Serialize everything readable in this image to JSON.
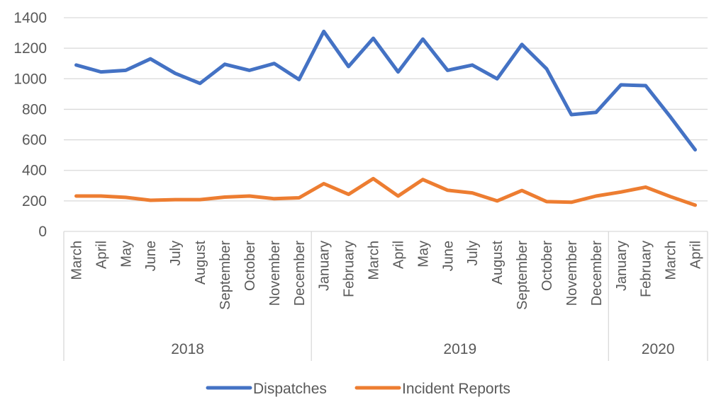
{
  "chart_data": {
    "type": "line",
    "title": "",
    "xlabel": "",
    "ylabel": "",
    "ylim": [
      0,
      1400
    ],
    "yticks": [
      0,
      200,
      400,
      600,
      800,
      1000,
      1200,
      1400
    ],
    "grid": true,
    "legend_position": "bottom",
    "categories": [
      "March",
      "April",
      "May",
      "June",
      "July",
      "August",
      "September",
      "October",
      "November",
      "December",
      "January",
      "February",
      "March",
      "April",
      "May",
      "June",
      "July",
      "August",
      "September",
      "October",
      "November",
      "December",
      "January",
      "February",
      "March",
      "April"
    ],
    "groups": [
      {
        "label": "2018",
        "count": 10
      },
      {
        "label": "2019",
        "count": 12
      },
      {
        "label": "2020",
        "count": 4
      }
    ],
    "series": [
      {
        "name": "Dispatches",
        "color": "#4472C4",
        "values": [
          1090,
          1045,
          1055,
          1130,
          1035,
          970,
          1095,
          1055,
          1100,
          995,
          1310,
          1080,
          1265,
          1045,
          1260,
          1055,
          1090,
          1000,
          1225,
          1065,
          765,
          780,
          960,
          955,
          750,
          535
        ]
      },
      {
        "name": "Incident Reports",
        "color": "#ED7D31",
        "values": [
          232,
          232,
          223,
          204,
          208,
          208,
          225,
          232,
          214,
          220,
          313,
          243,
          346,
          232,
          340,
          270,
          252,
          200,
          268,
          195,
          191,
          232,
          258,
          290,
          228,
          172
        ]
      }
    ]
  }
}
